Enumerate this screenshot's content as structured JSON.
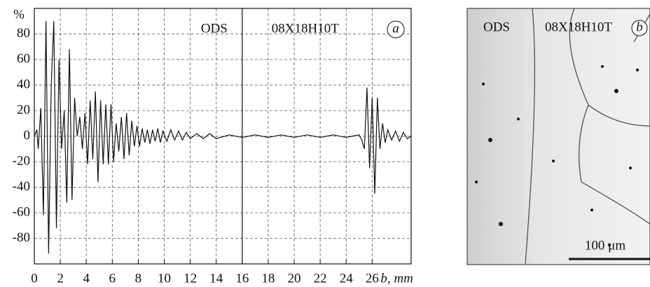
{
  "chart_data": {
    "type": "line",
    "color": "#111111",
    "x": [
      0,
      0.2,
      0.3,
      0.5,
      0.7,
      0.9,
      1.1,
      1.3,
      1.5,
      1.7,
      1.9,
      2.1,
      2.3,
      2.5,
      2.7,
      2.9,
      3.1,
      3.3,
      3.5,
      3.7,
      3.9,
      4.1,
      4.3,
      4.5,
      4.7,
      4.9,
      5.1,
      5.3,
      5.5,
      5.7,
      5.9,
      6.1,
      6.3,
      6.5,
      6.7,
      6.9,
      7.1,
      7.3,
      7.5,
      7.7,
      7.9,
      8.1,
      8.3,
      8.5,
      8.7,
      8.9,
      9.1,
      9.3,
      9.5,
      9.7,
      9.9,
      10.2,
      10.5,
      10.8,
      11.1,
      11.4,
      11.7,
      12,
      12.5,
      13,
      13.5,
      14,
      15,
      16,
      17,
      18,
      19,
      20,
      21,
      22,
      23,
      24,
      25,
      25.2,
      25.4,
      25.6,
      25.8,
      26,
      26.2,
      26.4,
      26.6,
      26.8,
      27,
      27.2,
      27.5,
      27.8,
      28.1,
      28.4,
      28.7,
      29
    ],
    "values": [
      0,
      5,
      -10,
      22,
      -62,
      90,
      -92,
      40,
      90,
      -72,
      60,
      -10,
      20,
      -52,
      68,
      -50,
      30,
      0,
      15,
      -10,
      18,
      -22,
      28,
      -18,
      35,
      -36,
      28,
      -22,
      25,
      -22,
      25,
      -20,
      10,
      -12,
      15,
      -18,
      18,
      -15,
      12,
      -8,
      8,
      -8,
      6,
      -5,
      5,
      -6,
      5,
      -4,
      6,
      -5,
      4,
      -4,
      5,
      -3,
      4,
      -3,
      3,
      -2,
      2,
      -2,
      2,
      -2,
      1,
      -1,
      1,
      -1,
      1,
      -1,
      1,
      -1,
      1,
      -1,
      1,
      -3,
      -10,
      38,
      -25,
      30,
      -45,
      30,
      -10,
      10,
      -5,
      5,
      -3,
      4,
      -4,
      3,
      -2,
      0
    ],
    "xlim": [
      0,
      29
    ],
    "ylim": [
      -100,
      100
    ],
    "xticks": [
      0,
      2,
      4,
      6,
      8,
      10,
      12,
      14,
      16,
      18,
      20,
      22,
      24,
      26
    ],
    "yticks": [
      -80,
      -60,
      -40,
      -20,
      0,
      20,
      40,
      60,
      80
    ],
    "ylabel": "%",
    "xlabel": "b, mm",
    "grid": true,
    "boundary": 16,
    "annotations": [
      "ODS",
      "08X18H10T"
    ],
    "panel": "a"
  },
  "micrograph": {
    "labels": [
      "ODS",
      "08X18H10T"
    ],
    "panel": "b",
    "scale_label": "100 μm"
  }
}
